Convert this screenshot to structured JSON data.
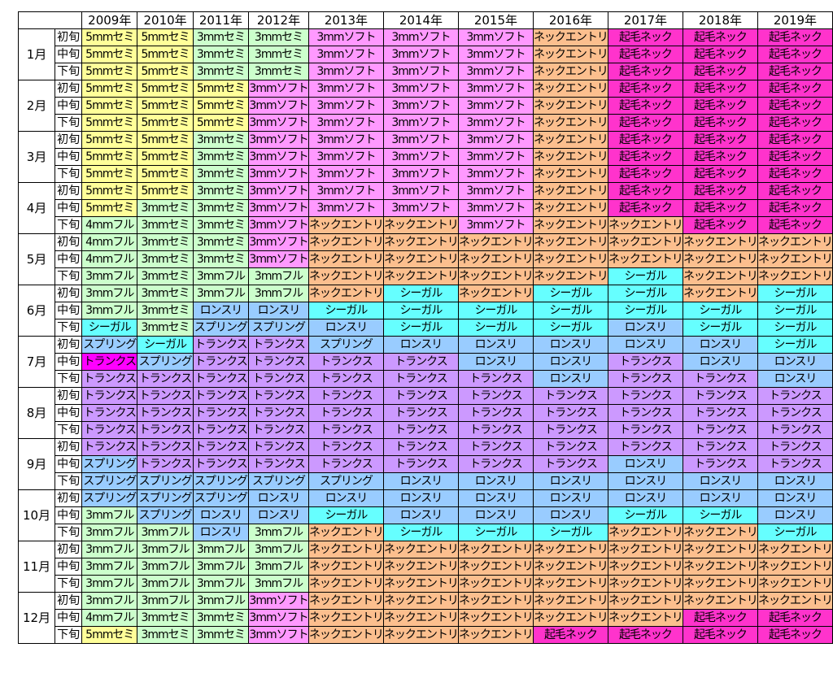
{
  "years": [
    "2009年",
    "2010年",
    "2011年",
    "2012年",
    "2013年",
    "2014年",
    "2015年",
    "2016年",
    "2017年",
    "2018年",
    "2019年"
  ],
  "months": [
    "1月",
    "2月",
    "3月",
    "4月",
    "5月",
    "6月",
    "7月",
    "8月",
    "9月",
    "10月",
    "11月",
    "12月"
  ],
  "periods": [
    "初旬",
    "中旬",
    "下旬"
  ],
  "legend_colors": {
    "5mmセミ": "#ffff99",
    "3mmセミ": "#ccffcc",
    "4mmフル": "#ccffcc",
    "3mmフル": "#ccffcc",
    "3mmソフト": "#ff99ff",
    "ネックエントリ": "#fcbf8e",
    "起毛ネック": "#ff33cc",
    "シーガル": "#66ffff",
    "スプリング": "#99ccff",
    "ロンスリ": "#99ccff",
    "トランクス": "#cc99ff",
    "トランクス*": "#ff00ff"
  },
  "rows": [
    [
      "5mmセミ",
      "5mmセミ",
      "3mmセミ",
      "3mmセミ",
      "3mmソフト",
      "3mmソフト",
      "3mmソフト",
      "ネックエントリ",
      "起毛ネック",
      "起毛ネック",
      "起毛ネック"
    ],
    [
      "5mmセミ",
      "5mmセミ",
      "3mmセミ",
      "3mmセミ",
      "3mmソフト",
      "3mmソフト",
      "3mmソフト",
      "ネックエントリ",
      "起毛ネック",
      "起毛ネック",
      "起毛ネック"
    ],
    [
      "5mmセミ",
      "5mmセミ",
      "3mmセミ",
      "3mmセミ",
      "3mmソフト",
      "3mmソフト",
      "3mmソフト",
      "ネックエントリ",
      "起毛ネック",
      "起毛ネック",
      "起毛ネック"
    ],
    [
      "5mmセミ",
      "5mmセミ",
      "5mmセミ",
      "3mmソフト",
      "3mmソフト",
      "3mmソフト",
      "3mmソフト",
      "ネックエントリ",
      "起毛ネック",
      "起毛ネック",
      "起毛ネック"
    ],
    [
      "5mmセミ",
      "5mmセミ",
      "5mmセミ",
      "3mmソフト",
      "3mmソフト",
      "3mmソフト",
      "3mmソフト",
      "ネックエントリ",
      "起毛ネック",
      "起毛ネック",
      "起毛ネック"
    ],
    [
      "5mmセミ",
      "5mmセミ",
      "5mmセミ",
      "3mmソフト",
      "3mmソフト",
      "3mmソフト",
      "3mmソフト",
      "ネックエントリ",
      "起毛ネック",
      "起毛ネック",
      "起毛ネック"
    ],
    [
      "5mmセミ",
      "5mmセミ",
      "3mmセミ",
      "3mmソフト",
      "3mmソフト",
      "3mmソフト",
      "3mmソフト",
      "ネックエントリ",
      "起毛ネック",
      "起毛ネック",
      "起毛ネック"
    ],
    [
      "5mmセミ",
      "5mmセミ",
      "3mmセミ",
      "3mmソフト",
      "3mmソフト",
      "3mmソフト",
      "3mmソフト",
      "ネックエントリ",
      "起毛ネック",
      "起毛ネック",
      "起毛ネック"
    ],
    [
      "5mmセミ",
      "5mmセミ",
      "3mmセミ",
      "3mmソフト",
      "3mmソフト",
      "3mmソフト",
      "3mmソフト",
      "ネックエントリ",
      "起毛ネック",
      "起毛ネック",
      "起毛ネック"
    ],
    [
      "5mmセミ",
      "5mmセミ",
      "3mmセミ",
      "3mmソフト",
      "3mmソフト",
      "3mmソフト",
      "3mmソフト",
      "ネックエントリ",
      "起毛ネック",
      "起毛ネック",
      "起毛ネック"
    ],
    [
      "5mmセミ",
      "3mmセミ",
      "3mmセミ",
      "3mmソフト",
      "3mmソフト",
      "3mmソフト",
      "3mmソフト",
      "ネックエントリ",
      "起毛ネック",
      "起毛ネック",
      "起毛ネック"
    ],
    [
      "4mmフル",
      "3mmセミ",
      "3mmセミ",
      "3mmソフト",
      "ネックエントリ",
      "ネックエントリ",
      "3mmソフト",
      "ネックエントリ",
      "ネックエントリ",
      "起毛ネック",
      "起毛ネック"
    ],
    [
      "4mmフル",
      "3mmセミ",
      "3mmセミ",
      "3mmソフト",
      "ネックエントリ",
      "ネックエントリ",
      "ネックエントリ",
      "ネックエントリ",
      "ネックエントリ",
      "ネックエントリ",
      "ネックエントリ"
    ],
    [
      "4mmフル",
      "3mmセミ",
      "3mmセミ",
      "3mmソフト",
      "ネックエントリ",
      "ネックエントリ",
      "ネックエントリ",
      "ネックエントリ",
      "ネックエントリ",
      "ネックエントリ",
      "ネックエントリ"
    ],
    [
      "3mmフル",
      "3mmセミ",
      "3mmフル",
      "3mmフル",
      "ネックエントリ",
      "ネックエントリ",
      "ネックエントリ",
      "ネックエントリ",
      "シーガル",
      "ネックエントリ",
      "ネックエントリ"
    ],
    [
      "3mmフル",
      "3mmセミ",
      "3mmフル",
      "3mmフル",
      "ネックエントリ",
      "シーガル",
      "ネックエントリ",
      "シーガル",
      "シーガル",
      "ネックエントリ",
      "シーガル"
    ],
    [
      "3mmフル",
      "3mmセミ",
      "ロンスリ",
      "ロンスリ",
      "シーガル",
      "シーガル",
      "シーガル",
      "シーガル",
      "シーガル",
      "シーガル",
      "シーガル"
    ],
    [
      "シーガル",
      "3mmセミ",
      "スプリング",
      "スプリング",
      "ロンスリ",
      "シーガル",
      "シーガル",
      "シーガル",
      "ロンスリ",
      "シーガル",
      "シーガル"
    ],
    [
      "スプリング",
      "シーガル",
      "トランクス",
      "トランクス",
      "スプリング",
      "ロンスリ",
      "ロンスリ",
      "ロンスリ",
      "ロンスリ",
      "ロンスリ",
      "シーガル"
    ],
    [
      "トランクス*",
      "スプリング",
      "トランクス",
      "トランクス",
      "トランクス",
      "トランクス",
      "ロンスリ",
      "ロンスリ",
      "トランクス",
      "ロンスリ",
      "ロンスリ"
    ],
    [
      "トランクス",
      "トランクス",
      "トランクス",
      "トランクス",
      "トランクス",
      "トランクス",
      "トランクス",
      "ロンスリ",
      "トランクス",
      "トランクス",
      "ロンスリ"
    ],
    [
      "トランクス",
      "トランクス",
      "トランクス",
      "トランクス",
      "トランクス",
      "トランクス",
      "トランクス",
      "トランクス",
      "トランクス",
      "トランクス",
      "トランクス"
    ],
    [
      "トランクス",
      "トランクス",
      "トランクス",
      "トランクス",
      "トランクス",
      "トランクス",
      "トランクス",
      "トランクス",
      "トランクス",
      "トランクス",
      "トランクス"
    ],
    [
      "トランクス",
      "トランクス",
      "トランクス",
      "トランクス",
      "トランクス",
      "トランクス",
      "トランクス",
      "トランクス",
      "トランクス",
      "トランクス",
      "トランクス"
    ],
    [
      "トランクス",
      "トランクス",
      "トランクス",
      "トランクス",
      "トランクス",
      "トランクス",
      "トランクス",
      "トランクス",
      "トランクス",
      "トランクス",
      "トランクス"
    ],
    [
      "スプリング",
      "トランクス",
      "トランクス",
      "トランクス",
      "トランクス",
      "トランクス",
      "トランクス",
      "トランクス",
      "ロンスリ",
      "トランクス",
      "トランクス"
    ],
    [
      "スプリング",
      "スプリング",
      "スプリング",
      "スプリング",
      "スプリング",
      "ロンスリ",
      "ロンスリ",
      "ロンスリ",
      "ロンスリ",
      "ロンスリ",
      "ロンスリ"
    ],
    [
      "スプリング",
      "スプリング",
      "スプリング",
      "ロンスリ",
      "ロンスリ",
      "ロンスリ",
      "ロンスリ",
      "ロンスリ",
      "ロンスリ",
      "ロンスリ",
      "ロンスリ"
    ],
    [
      "3mmフル",
      "スプリング",
      "ロンスリ",
      "ロンスリ",
      "シーガル",
      "ロンスリ",
      "ロンスリ",
      "ロンスリ",
      "シーガル",
      "シーガル",
      "ロンスリ"
    ],
    [
      "3mmフル",
      "3mmフル",
      "ロンスリ",
      "3mmフル",
      "ネックエントリ",
      "シーガル",
      "シーガル",
      "シーガル",
      "ネックエントリ",
      "ネックエントリ",
      "シーガル"
    ],
    [
      "3mmフル",
      "3mmフル",
      "3mmフル",
      "3mmフル",
      "ネックエントリ",
      "ネックエントリ",
      "ネックエントリ",
      "ネックエントリ",
      "ネックエントリ",
      "ネックエントリ",
      "ネックエントリ"
    ],
    [
      "3mmフル",
      "3mmフル",
      "3mmフル",
      "3mmフル",
      "ネックエントリ",
      "ネックエントリ",
      "ネックエントリ",
      "ネックエントリ",
      "ネックエントリ",
      "ネックエントリ",
      "ネックエントリ"
    ],
    [
      "3mmフル",
      "3mmフル",
      "3mmフル",
      "3mmフル",
      "ネックエントリ",
      "ネックエントリ",
      "ネックエントリ",
      "ネックエントリ",
      "ネックエントリ",
      "ネックエントリ",
      "ネックエントリ"
    ],
    [
      "3mmフル",
      "3mmフル",
      "3mmフル",
      "3mmソフト",
      "ネックエントリ",
      "ネックエントリ",
      "ネックエントリ",
      "ネックエントリ",
      "ネックエントリ",
      "ネックエントリ",
      "ネックエントリ"
    ],
    [
      "4mmフル",
      "3mmセミ",
      "3mmセミ",
      "3mmソフト",
      "ネックエントリ",
      "ネックエントリ",
      "ネックエントリ",
      "ネックエントリ",
      "ネックエントリ",
      "起毛ネック",
      "起毛ネック"
    ],
    [
      "5mmセミ",
      "3mmセミ",
      "3mmセミ",
      "3mmソフト",
      "ネックエントリ",
      "ネックエントリ",
      "ネックエントリ",
      "起毛ネック",
      "起毛ネック",
      "起毛ネック",
      "起毛ネック"
    ]
  ]
}
